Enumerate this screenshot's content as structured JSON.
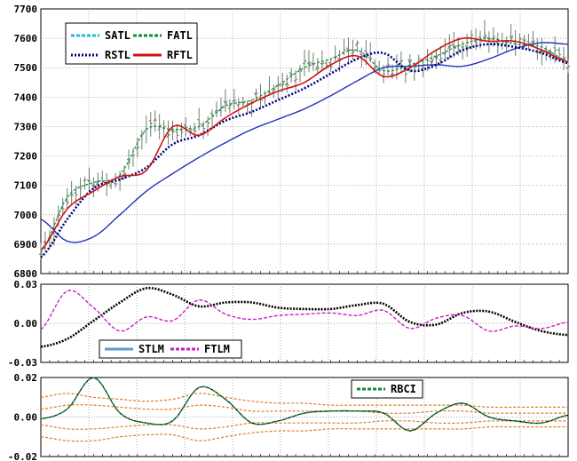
{
  "chart_data": [
    {
      "type": "line",
      "panel": "price",
      "ylim": [
        6800,
        7700
      ],
      "yticks": [
        "6800",
        "6900",
        "7000",
        "7100",
        "7200",
        "7300",
        "7400",
        "7500",
        "7600",
        "7700"
      ],
      "grid": true,
      "legend_position": "top-left",
      "colors": {
        "SATL": "#29b6e8",
        "FATL": "#138a3a",
        "RSTL": "#000080",
        "RFTL": "#d41010",
        "bars": "#6e7f6e"
      },
      "x": [
        0,
        12,
        24,
        36,
        48,
        60,
        72,
        84,
        96,
        108,
        120,
        132,
        144,
        156,
        168,
        180,
        192,
        204,
        216,
        228,
        240
      ],
      "series": [
        {
          "name": "SATL",
          "values": [
            6985,
            6910,
            6925,
            7000,
            7080,
            7140,
            7195,
            7245,
            7290,
            7325,
            7360,
            7405,
            7455,
            7500,
            7505,
            7510,
            7505,
            7530,
            7565,
            7585,
            7580
          ]
        },
        {
          "name": "FATL",
          "values": [
            6870,
            7060,
            7110,
            7135,
            7290,
            7290,
            7300,
            7370,
            7390,
            7440,
            7500,
            7530,
            7560,
            7490,
            7510,
            7540,
            7580,
            7600,
            7580,
            7570,
            7520
          ]
        },
        {
          "name": "RSTL",
          "values": [
            6855,
            6985,
            7090,
            7120,
            7160,
            7240,
            7270,
            7320,
            7350,
            7390,
            7430,
            7480,
            7530,
            7550,
            7490,
            7510,
            7560,
            7580,
            7570,
            7550,
            7515
          ]
        },
        {
          "name": "RFTL",
          "values": [
            6880,
            7020,
            7080,
            7130,
            7150,
            7300,
            7270,
            7330,
            7380,
            7420,
            7450,
            7510,
            7540,
            7470,
            7500,
            7560,
            7600,
            7590,
            7590,
            7560,
            7520
          ]
        }
      ]
    },
    {
      "type": "line",
      "panel": "oscillator",
      "ylim": [
        -0.03,
        0.03
      ],
      "yticks": [
        "-0.03",
        "0.00",
        "0.03"
      ],
      "grid": true,
      "legend_position": "bottom-left",
      "colors": {
        "STLM": "#5b9bd5",
        "FTLM": "#c81ec8"
      },
      "x": [
        0,
        12,
        24,
        36,
        48,
        60,
        72,
        84,
        96,
        108,
        120,
        132,
        144,
        156,
        168,
        180,
        192,
        204,
        216,
        228,
        240
      ],
      "series": [
        {
          "name": "STLM",
          "values": [
            -0.018,
            -0.012,
            0.002,
            0.016,
            0.027,
            0.022,
            0.013,
            0.016,
            0.016,
            0.012,
            0.011,
            0.011,
            0.014,
            0.015,
            0.001,
            -0.001,
            0.008,
            0.009,
            0.001,
            -0.006,
            -0.009
          ]
        },
        {
          "name": "FTLM",
          "values": [
            -0.005,
            0.025,
            0.012,
            -0.006,
            0.005,
            0.002,
            0.018,
            0.007,
            0.003,
            0.006,
            0.007,
            0.008,
            0.006,
            0.01,
            -0.004,
            0.004,
            0.006,
            -0.006,
            -0.002,
            -0.004,
            0.001
          ]
        }
      ]
    },
    {
      "type": "line",
      "panel": "rbci",
      "ylim": [
        -0.02,
        0.02
      ],
      "yticks": [
        "-0.02",
        "0.00",
        "0.02"
      ],
      "grid": true,
      "legend_position": "top-right",
      "colors": {
        "RBCI": "#138a3a",
        "bands": "#e07a20"
      },
      "x": [
        0,
        12,
        24,
        36,
        48,
        60,
        72,
        84,
        96,
        108,
        120,
        132,
        144,
        156,
        168,
        180,
        192,
        204,
        216,
        228,
        240
      ],
      "series": [
        {
          "name": "RBCI",
          "values": [
            -0.001,
            0.004,
            0.02,
            0.002,
            -0.003,
            -0.002,
            0.015,
            0.009,
            -0.003,
            -0.002,
            0.002,
            0.003,
            0.003,
            0.002,
            -0.007,
            0.002,
            0.007,
            0.0,
            -0.002,
            -0.003,
            0.001
          ]
        }
      ],
      "bands": {
        "upper_outer": [
          0.01,
          0.012,
          0.01,
          0.009,
          0.008,
          0.009,
          0.012,
          0.01,
          0.008,
          0.007,
          0.007,
          0.006,
          0.006,
          0.006,
          0.006,
          0.006,
          0.006,
          0.005,
          0.005,
          0.005,
          0.005
        ],
        "upper_inner": [
          0.004,
          0.006,
          0.006,
          0.005,
          0.004,
          0.004,
          0.006,
          0.005,
          0.003,
          0.003,
          0.003,
          0.003,
          0.003,
          0.002,
          0.002,
          0.003,
          0.003,
          0.002,
          0.002,
          0.002,
          0.002
        ],
        "lower_inner": [
          -0.004,
          -0.006,
          -0.006,
          -0.005,
          -0.004,
          -0.004,
          -0.006,
          -0.005,
          -0.003,
          -0.003,
          -0.003,
          -0.003,
          -0.003,
          -0.002,
          -0.002,
          -0.003,
          -0.003,
          -0.002,
          -0.002,
          -0.002,
          -0.002
        ],
        "lower_outer": [
          -0.01,
          -0.012,
          -0.012,
          -0.01,
          -0.009,
          -0.009,
          -0.012,
          -0.01,
          -0.008,
          -0.007,
          -0.007,
          -0.006,
          -0.006,
          -0.006,
          -0.006,
          -0.006,
          -0.006,
          -0.005,
          -0.005,
          -0.005,
          -0.005
        ]
      }
    }
  ]
}
